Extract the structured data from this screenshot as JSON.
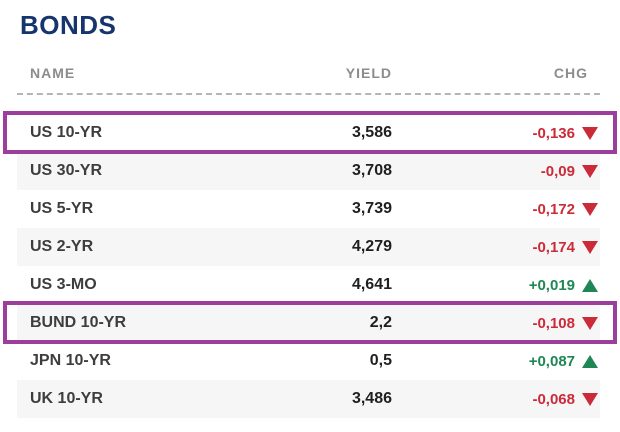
{
  "title": "BONDS",
  "table": {
    "columns": [
      {
        "key": "name",
        "label": "NAME"
      },
      {
        "key": "yield",
        "label": "YIELD"
      },
      {
        "key": "chg",
        "label": "CHG"
      }
    ],
    "rows": [
      {
        "name": "US 10-YR",
        "yield": "3,586",
        "chg": "-0,136",
        "direction": "down",
        "highlighted": true
      },
      {
        "name": "US 30-YR",
        "yield": "3,708",
        "chg": "-0,09",
        "direction": "down",
        "highlighted": false
      },
      {
        "name": "US 5-YR",
        "yield": "3,739",
        "chg": "-0,172",
        "direction": "down",
        "highlighted": false
      },
      {
        "name": "US 2-YR",
        "yield": "4,279",
        "chg": "-0,174",
        "direction": "down",
        "highlighted": false
      },
      {
        "name": "US 3-MO",
        "yield": "4,641",
        "chg": "+0,019",
        "direction": "up",
        "highlighted": false
      },
      {
        "name": "BUND 10-YR",
        "yield": "2,2",
        "chg": "-0,108",
        "direction": "down",
        "highlighted": true
      },
      {
        "name": "JPN 10-YR",
        "yield": "0,5",
        "chg": "+0,087",
        "direction": "up",
        "highlighted": false
      },
      {
        "name": "UK 10-YR",
        "yield": "3,486",
        "chg": "-0,068",
        "direction": "down",
        "highlighted": false
      }
    ]
  },
  "icons": {
    "down": "down-triangle-icon",
    "up": "up-triangle-icon"
  },
  "colors": {
    "accent_purple": "#9c3f9c",
    "negative_red": "#cb2a39",
    "positive_green": "#1e8755",
    "title_navy": "#17356d",
    "header_gray": "#8c8c8c",
    "zebra_row": "#f6f6f7"
  }
}
